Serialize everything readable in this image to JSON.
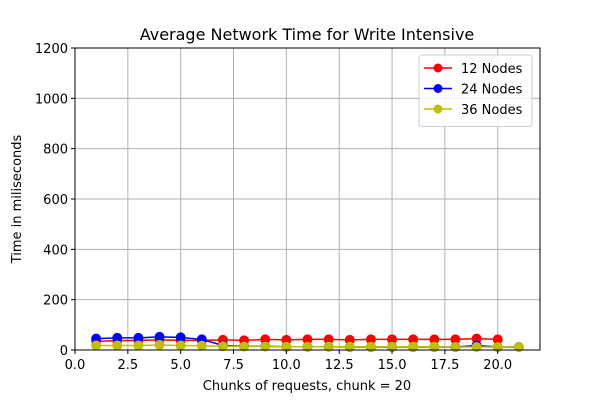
{
  "chart_data": {
    "type": "line",
    "title": "Average Network Time for Write Intensive",
    "xlabel": "Chunks of requests, chunk = 20",
    "ylabel": "Time in miliseconds",
    "xlim": [
      0,
      22
    ],
    "ylim": [
      0,
      1200
    ],
    "xticks": [
      0,
      2.5,
      5,
      7.5,
      10,
      12.5,
      15,
      17.5,
      20
    ],
    "xtick_labels": [
      "0.0",
      "2.5",
      "5.0",
      "7.5",
      "10.0",
      "12.5",
      "15.0",
      "17.5",
      "20.0"
    ],
    "yticks": [
      0,
      200,
      400,
      600,
      800,
      1000,
      1200
    ],
    "ytick_labels": [
      "0",
      "200",
      "400",
      "600",
      "800",
      "1000",
      "1200"
    ],
    "grid": true,
    "legend_position": "top-right",
    "series": [
      {
        "name": "12 Nodes",
        "color": "#ff0000",
        "x": [
          1,
          2,
          3,
          4,
          5,
          6,
          7,
          8,
          9,
          10,
          11,
          12,
          13,
          14,
          15,
          16,
          17,
          18,
          19,
          20
        ],
        "y": [
          35,
          37,
          38,
          40,
          38,
          38,
          40,
          38,
          42,
          40,
          42,
          42,
          40,
          42,
          42,
          42,
          42,
          42,
          45,
          42
        ]
      },
      {
        "name": "24 Nodes",
        "color": "#0000ff",
        "x": [
          1,
          2,
          3,
          4,
          5,
          6,
          7,
          8,
          9,
          10,
          11,
          12,
          13,
          14,
          15,
          16,
          17,
          18,
          19,
          20,
          21
        ],
        "y": [
          45,
          48,
          48,
          52,
          50,
          42,
          18,
          15,
          15,
          13,
          13,
          13,
          12,
          12,
          12,
          12,
          12,
          12,
          18,
          12,
          12
        ]
      },
      {
        "name": "36 Nodes",
        "color": "#bfbf00",
        "x": [
          1,
          2,
          3,
          4,
          5,
          6,
          7,
          8,
          9,
          10,
          11,
          12,
          13,
          14,
          15,
          16,
          17,
          18,
          19,
          20,
          21
        ],
        "y": [
          18,
          18,
          18,
          20,
          18,
          17,
          15,
          14,
          14,
          13,
          13,
          13,
          13,
          13,
          13,
          13,
          13,
          12,
          12,
          12,
          12
        ]
      }
    ]
  }
}
